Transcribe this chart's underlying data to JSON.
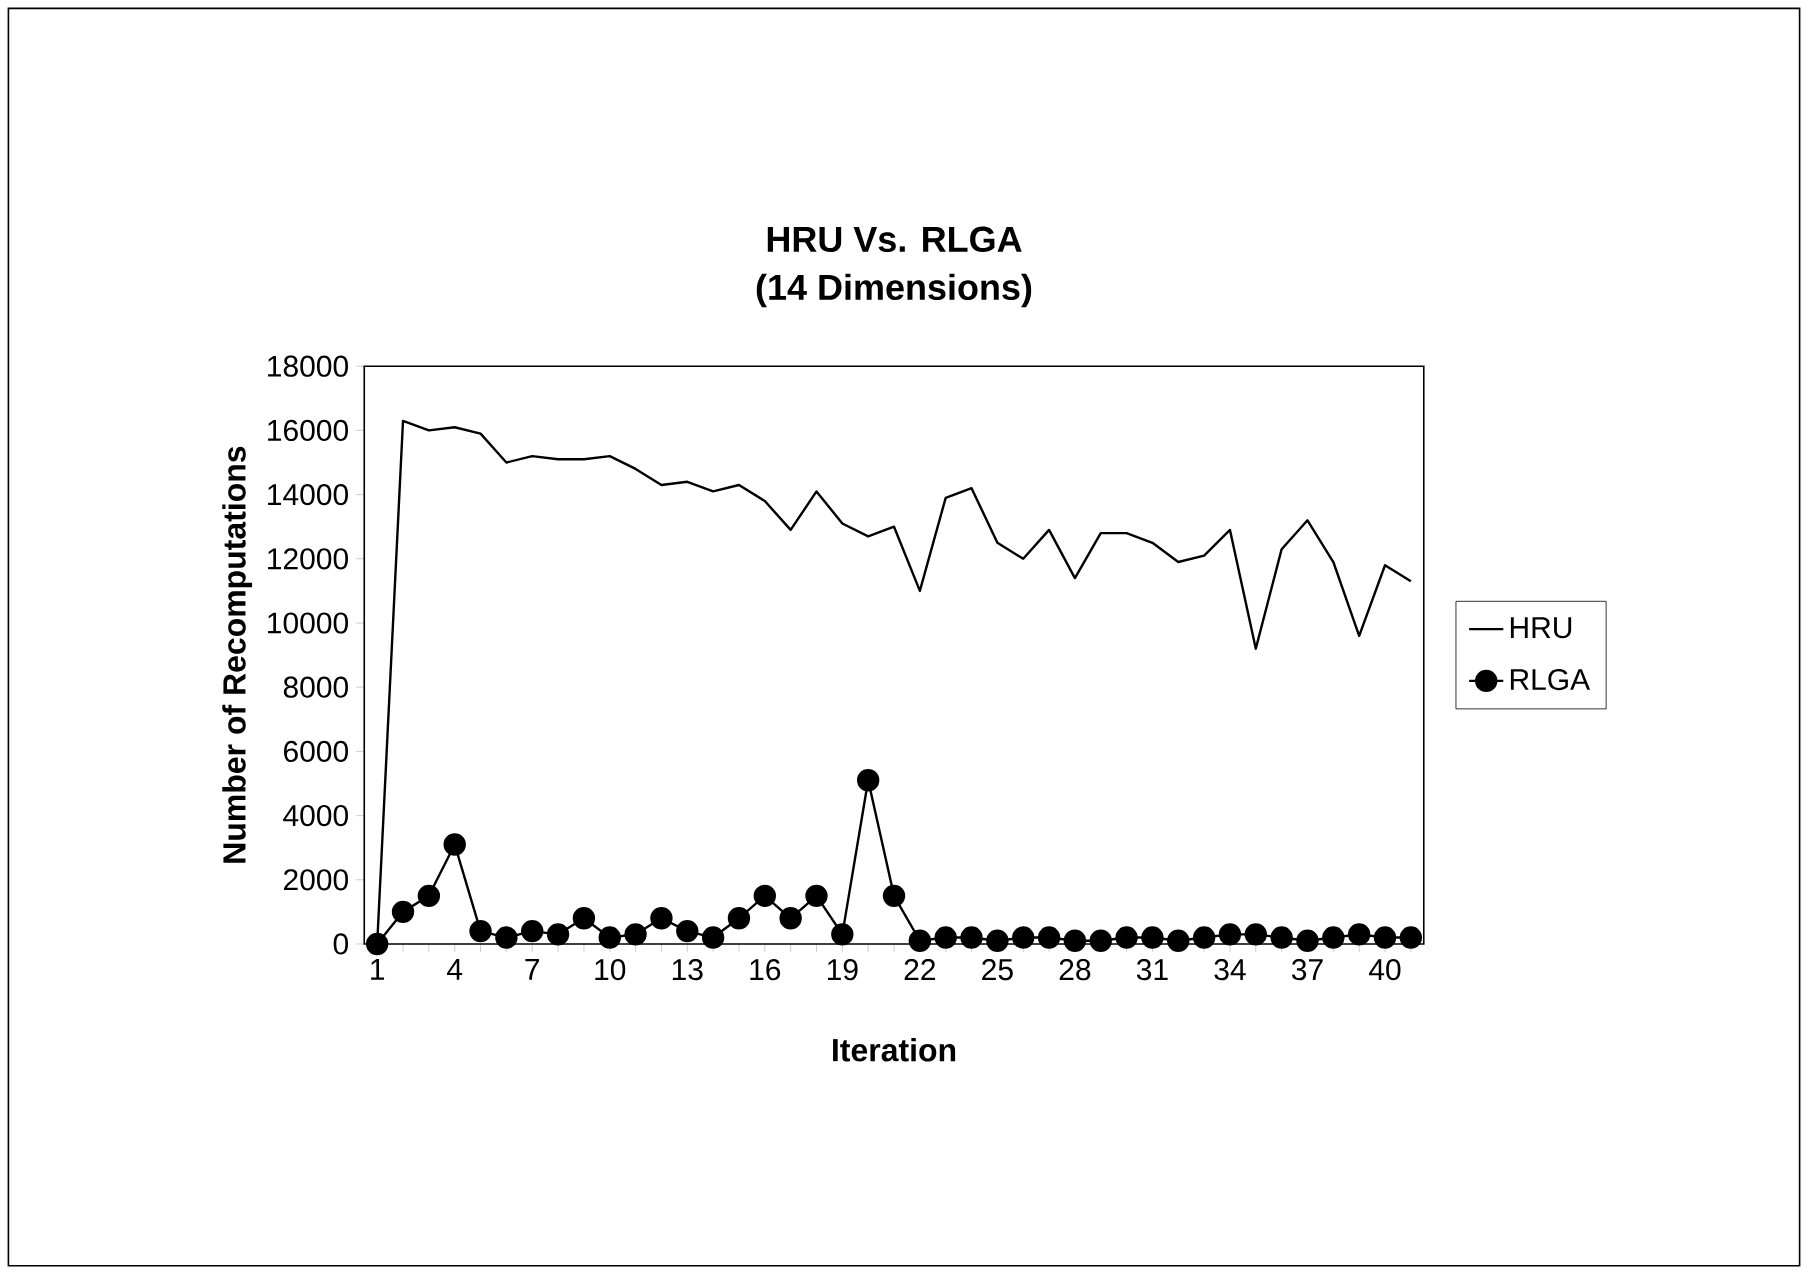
{
  "chart_data": {
    "type": "line",
    "title": "HRU Vs. RLGA",
    "subtitle": "(14 Dimensions)",
    "xlabel": "Iteration",
    "ylabel": "Number of Recomputations",
    "categories": [
      "1",
      null,
      null,
      "4",
      null,
      null,
      "7",
      null,
      null,
      "10",
      null,
      null,
      "13",
      null,
      null,
      "16",
      null,
      null,
      "19",
      null,
      null,
      "22",
      null,
      null,
      "25",
      null,
      null,
      "28",
      null,
      null,
      "31",
      null,
      null,
      "34",
      null,
      null,
      "37",
      null,
      null,
      "40",
      null
    ],
    "series": [
      {
        "name": "HRU",
        "color": "#000000",
        "marker": "none",
        "values": [
          0,
          16300,
          16000,
          16100,
          15900,
          15000,
          15200,
          15100,
          15100,
          15200,
          14800,
          14300,
          14400,
          14100,
          14300,
          13800,
          12900,
          14100,
          13100,
          12700,
          13000,
          11000,
          13900,
          14200,
          12500,
          12000,
          12900,
          11400,
          12800,
          12800,
          12500,
          11900,
          12100,
          12900,
          9200,
          12300,
          13200,
          11900,
          9600,
          11800,
          11300
        ]
      },
      {
        "name": "RLGA",
        "color": "#000000",
        "marker": "circle",
        "values": [
          0,
          1000,
          1500,
          3100,
          400,
          200,
          400,
          300,
          800,
          200,
          300,
          800,
          400,
          200,
          800,
          1500,
          800,
          1500,
          300,
          5100,
          1500,
          100,
          200,
          200,
          100,
          200,
          200,
          100,
          100,
          200,
          200,
          100,
          200,
          300,
          300,
          200,
          100,
          200,
          300,
          200,
          200
        ]
      }
    ],
    "ylim": [
      0,
      18000
    ],
    "yticks": [
      0,
      2000,
      4000,
      6000,
      8000,
      10000,
      12000,
      14000,
      16000,
      18000
    ],
    "grid": false,
    "legend": "right"
  }
}
